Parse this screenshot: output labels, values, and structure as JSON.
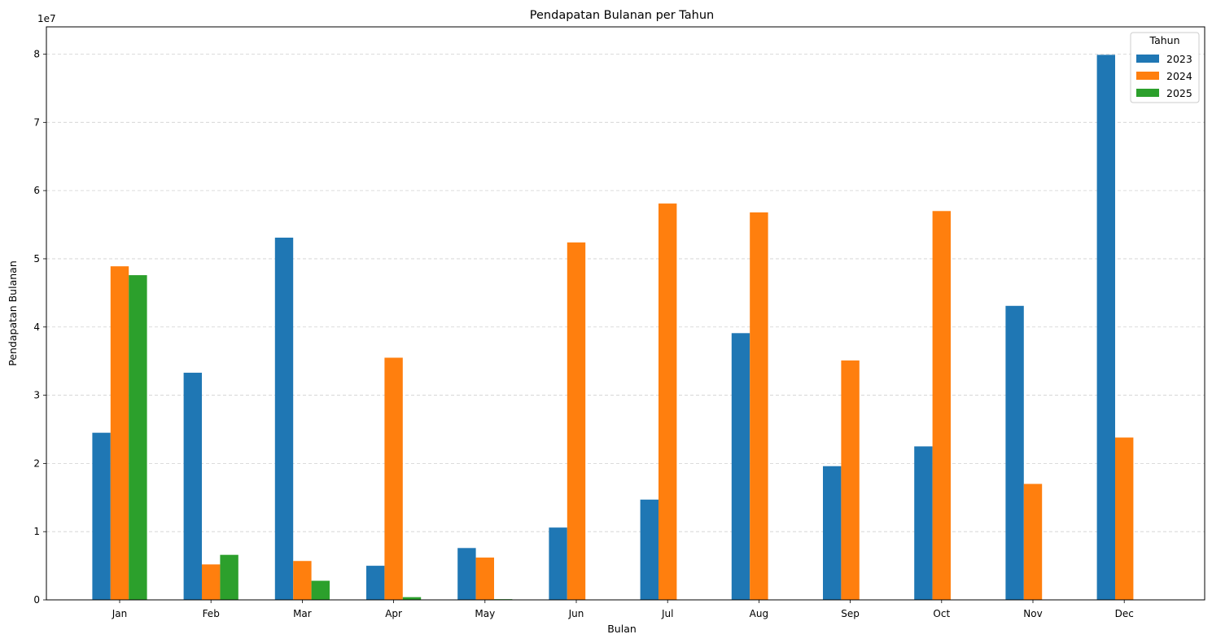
{
  "chart_data": {
    "type": "bar",
    "title": "Pendapatan Bulanan per Tahun",
    "xlabel": "Bulan",
    "ylabel": "Pendapatan Bulanan",
    "y_offset_text": "1e7",
    "y_scale": 10000000,
    "ylim": [
      0,
      84000000
    ],
    "yticks": [
      0,
      10000000,
      20000000,
      30000000,
      40000000,
      50000000,
      60000000,
      70000000,
      80000000
    ],
    "ytick_labels": [
      "0",
      "1",
      "2",
      "3",
      "4",
      "5",
      "6",
      "7",
      "8"
    ],
    "grid": "y-dashed",
    "legend": {
      "title": "Tahun",
      "placement": "top-right"
    },
    "categories": [
      "Jan",
      "Feb",
      "Mar",
      "Apr",
      "May",
      "Jun",
      "Jul",
      "Aug",
      "Sep",
      "Oct",
      "Nov",
      "Dec"
    ],
    "series": [
      {
        "name": "2023",
        "color": "#1f77b4",
        "values": [
          24500000,
          33300000,
          53100000,
          5000000,
          7600000,
          10600000,
          14700000,
          39100000,
          19600000,
          22500000,
          43100000,
          79900000
        ]
      },
      {
        "name": "2024",
        "color": "#ff7f0e",
        "values": [
          48900000,
          5200000,
          5700000,
          35500000,
          6200000,
          52400000,
          58100000,
          56800000,
          35100000,
          57000000,
          17000000,
          23800000
        ]
      },
      {
        "name": "2025",
        "color": "#2ca02c",
        "values": [
          47600000,
          6600000,
          2800000,
          400000,
          100000,
          0,
          0,
          0,
          0,
          0,
          0,
          0
        ]
      }
    ]
  }
}
